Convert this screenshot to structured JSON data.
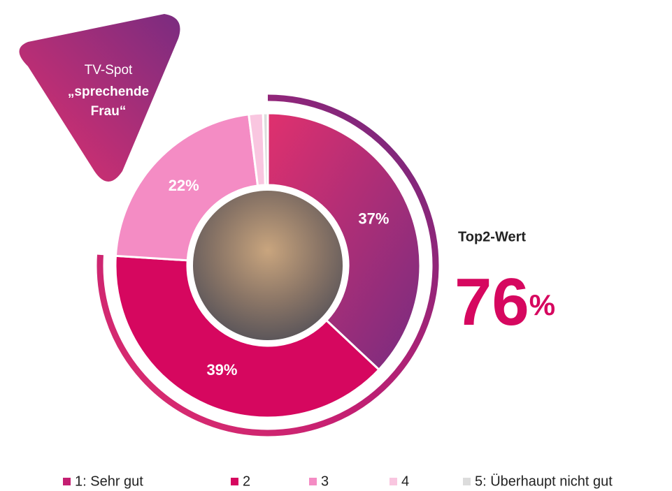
{
  "chart_data": {
    "type": "donut",
    "badge": {
      "lines": [
        "TV-Spot",
        "„sprechende",
        "Frau“"
      ]
    },
    "categories": [
      "1: Sehr gut",
      "2",
      "3",
      "4",
      "5: Überhaupt nicht gut"
    ],
    "values": [
      37,
      39,
      22,
      1.5,
      0.5
    ],
    "value_labels": [
      "37%",
      "39%",
      "22%",
      null,
      null
    ],
    "colors": [
      "#c41f72",
      "#d6075f",
      "#f48cc4",
      "#f9c6e0",
      "#dcdcdc"
    ],
    "top2": {
      "label": "Top2-Wert",
      "value": "76",
      "unit": "%"
    },
    "legend": "bottom"
  }
}
